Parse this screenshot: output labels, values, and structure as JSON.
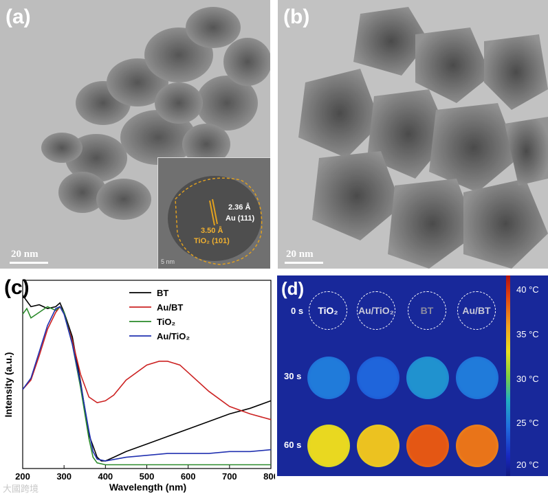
{
  "panel_a": {
    "label": "(a)",
    "scale_bar": "20 nm",
    "inset": {
      "d_spacing_au": "2.36 Å",
      "au_plane": "Au (111)",
      "d_spacing_tio2": "3.50 Å",
      "tio2_plane": "TiO₂ (101)",
      "inset_scale": "5 nm"
    }
  },
  "panel_b": {
    "label": "(b)",
    "scale_bar": "20 nm"
  },
  "panel_c": {
    "label": "(c)"
  },
  "panel_d": {
    "label": "(d)",
    "times": [
      "0 s",
      "30 s",
      "60 s"
    ],
    "samples": [
      "TiO₂",
      "Au/TiO₂",
      "BT",
      "Au/BT"
    ],
    "colorbar_ticks": [
      "40 °C",
      "35 °C",
      "30 °C",
      "25 °C",
      "20 °C"
    ],
    "colorbar_range": [
      19,
      41
    ],
    "spot_temperatures": {
      "30 s": [
        25,
        24,
        26,
        25
      ],
      "60 s": [
        33,
        34,
        38,
        37
      ]
    },
    "colors": {
      "background": "#18289a",
      "ring": "#ffffff"
    }
  },
  "chart_data": {
    "type": "line",
    "title": "",
    "xlabel": "Wavelength (nm)",
    "ylabel": "Intensity (a.u.)",
    "xlim": [
      200,
      800
    ],
    "ylim": [
      0,
      1
    ],
    "xticks": [
      "200",
      "300",
      "400",
      "500",
      "600",
      "700",
      "800"
    ],
    "legend_position": "top-right",
    "series": [
      {
        "name": "BT",
        "color": "#000000",
        "x": [
          200,
          220,
          240,
          260,
          280,
          290,
          300,
          320,
          340,
          360,
          380,
          390,
          400,
          420,
          450,
          500,
          550,
          600,
          650,
          700,
          750,
          800
        ],
        "y": [
          0.92,
          0.86,
          0.87,
          0.85,
          0.86,
          0.88,
          0.83,
          0.7,
          0.46,
          0.18,
          0.06,
          0.04,
          0.04,
          0.06,
          0.09,
          0.13,
          0.17,
          0.21,
          0.25,
          0.29,
          0.32,
          0.36
        ]
      },
      {
        "name": "Au/BT",
        "color": "#cc2222",
        "x": [
          200,
          220,
          240,
          260,
          280,
          290,
          300,
          320,
          340,
          360,
          380,
          400,
          420,
          450,
          500,
          530,
          550,
          580,
          600,
          650,
          700,
          750,
          800
        ],
        "y": [
          0.42,
          0.47,
          0.6,
          0.74,
          0.83,
          0.86,
          0.82,
          0.68,
          0.5,
          0.38,
          0.35,
          0.36,
          0.39,
          0.47,
          0.55,
          0.57,
          0.57,
          0.55,
          0.51,
          0.41,
          0.33,
          0.29,
          0.26
        ]
      },
      {
        "name": "TiO₂",
        "color": "#2a8a2a",
        "x": [
          200,
          210,
          220,
          240,
          260,
          280,
          290,
          300,
          320,
          340,
          360,
          370,
          380,
          400,
          450,
          500,
          550,
          600,
          650,
          700,
          750,
          800
        ],
        "y": [
          0.82,
          0.85,
          0.8,
          0.83,
          0.86,
          0.84,
          0.86,
          0.83,
          0.66,
          0.43,
          0.16,
          0.06,
          0.03,
          0.02,
          0.02,
          0.02,
          0.02,
          0.02,
          0.02,
          0.02,
          0.02,
          0.02
        ]
      },
      {
        "name": "Au/TiO₂",
        "color": "#2030b0",
        "x": [
          200,
          220,
          240,
          260,
          280,
          290,
          300,
          320,
          340,
          360,
          370,
          380,
          400,
          450,
          500,
          550,
          600,
          650,
          700,
          750,
          800
        ],
        "y": [
          0.42,
          0.48,
          0.62,
          0.76,
          0.85,
          0.86,
          0.82,
          0.66,
          0.45,
          0.2,
          0.09,
          0.05,
          0.04,
          0.06,
          0.07,
          0.08,
          0.08,
          0.08,
          0.09,
          0.09,
          0.1
        ]
      }
    ]
  },
  "watermark": "大國跨境"
}
